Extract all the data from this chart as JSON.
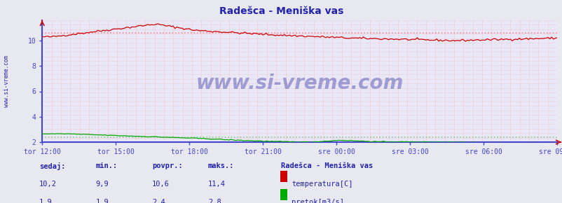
{
  "title": "Radešca - Meniška vas",
  "bg_color": "#e8e8f0",
  "plot_bg_color": "#e8e8f8",
  "grid_dot_color": "#ffaaaa",
  "axis_color": "#4444cc",
  "temp_color": "#cc0000",
  "flow_color": "#00aa00",
  "avg_temp_color": "#ff8888",
  "avg_flow_color": "#88cc88",
  "text_color": "#2222aa",
  "watermark": "www.si-vreme.com",
  "watermark_color": "#4444aa",
  "sidebar_text": "www.si-vreme.com",
  "x_labels": [
    "tor 12:00",
    "tor 15:00",
    "tor 18:00",
    "tor 21:00",
    "sre 00:00",
    "sre 03:00",
    "sre 06:00",
    "sre 09:00"
  ],
  "y_ticks": [
    2,
    4,
    6,
    8,
    10
  ],
  "y_min": 2.0,
  "y_max": 11.6,
  "temp_avg": 10.6,
  "flow_avg": 2.4,
  "legend_title": "Radešca - Meniška vas",
  "legend_items": [
    {
      "label": "temperatura[C]",
      "color": "#cc0000"
    },
    {
      "label": "pretok[m3/s]",
      "color": "#00aa00"
    }
  ],
  "stats_headers": [
    "sedaj:",
    "min.:",
    "povpr.:",
    "maks.:"
  ],
  "stats_temp": [
    "10,2",
    "9,9",
    "10,6",
    "11,4"
  ],
  "stats_flow": [
    "1,9",
    "1,9",
    "2,4",
    "2,8"
  ],
  "n_points": 288
}
